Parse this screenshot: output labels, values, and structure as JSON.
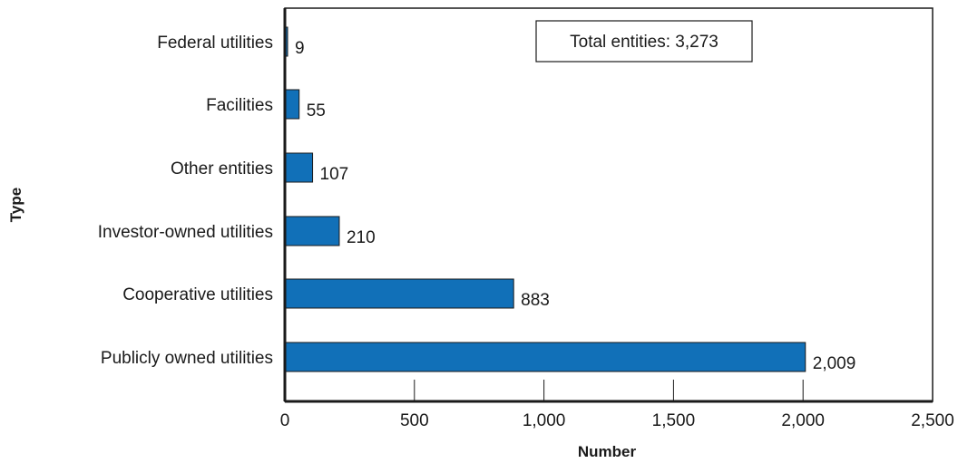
{
  "chart_data": {
    "type": "bar",
    "orientation": "horizontal",
    "categories": [
      "Federal utilities",
      "Facilities",
      "Other entities",
      "Investor-owned utilities",
      "Cooperative utilities",
      "Publicly owned utilities"
    ],
    "values": [
      9,
      55,
      107,
      210,
      883,
      2009
    ],
    "value_labels": [
      "9",
      "55",
      "107",
      "210",
      "883",
      "2,009"
    ],
    "xlabel": "Number",
    "ylabel": "Type",
    "xlim": [
      0,
      2500
    ],
    "xticks": [
      0,
      500,
      1000,
      1500,
      2000,
      2500
    ],
    "xtick_labels": [
      "0",
      "500",
      "1,000",
      "1,500",
      "2,000",
      "2,500"
    ],
    "annotation": "Total entities: 3,273",
    "bar_color": "#1170b8",
    "grid": false
  }
}
